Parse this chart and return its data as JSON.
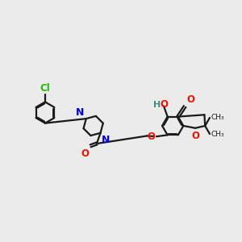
{
  "bg_color": "#ebebeb",
  "bond_color": "#1a1a1a",
  "N_color": "#0000ee",
  "O_color": "#ee1100",
  "Cl_color": "#22bb00",
  "H_color": "#4a8888",
  "figsize": [
    3.0,
    3.0
  ],
  "dpi": 100,
  "xlim": [
    0,
    10
  ],
  "ylim": [
    1,
    7.5
  ]
}
